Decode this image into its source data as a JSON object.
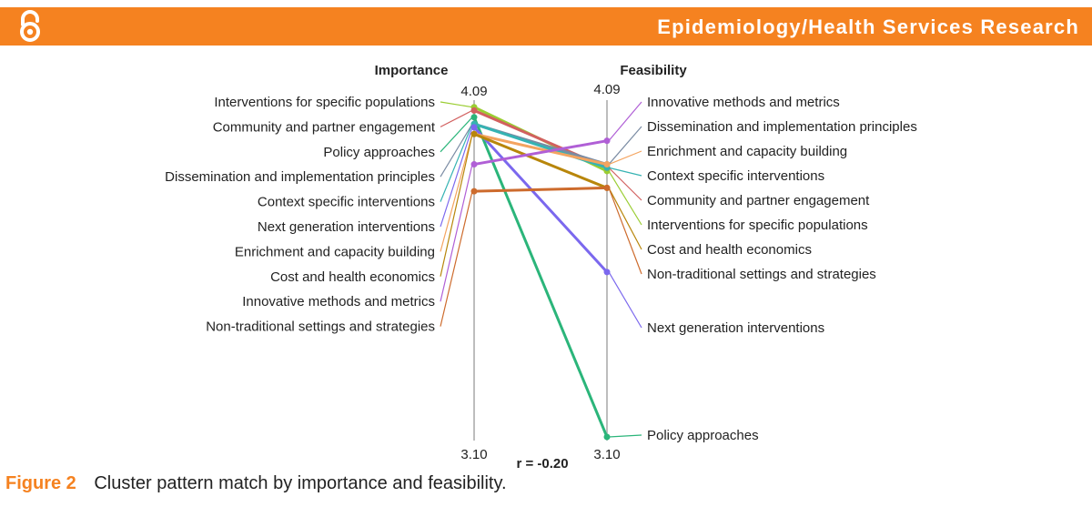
{
  "header": {
    "section_title": "Epidemiology/Health Services Research",
    "accent_color": "#f58220"
  },
  "caption": {
    "figure_label": "Figure 2",
    "text": "Cluster pattern match by importance and feasibility."
  },
  "chart_data": {
    "type": "slope",
    "left_axis": {
      "title": "Importance",
      "max_label": "4.09",
      "min_label": "3.10",
      "range": [
        3.1,
        4.09
      ]
    },
    "right_axis": {
      "title": "Feasibility",
      "max_label": "4.09",
      "min_label": "3.10",
      "range": [
        3.1,
        4.09
      ]
    },
    "correlation_label": "r = -0.20",
    "left_order": [
      "Interventions for specific populations",
      "Community and partner engagement",
      "Policy approaches",
      "Dissemination and implementation principles",
      "Context specific interventions",
      "Next generation interventions",
      "Enrichment and capacity building",
      "Cost and health economics",
      "Innovative methods and metrics",
      "Non-traditional settings and strategies"
    ],
    "right_order": [
      "Innovative methods and metrics",
      "Dissemination and implementation principles",
      "Enrichment and capacity building",
      "Context specific interventions",
      "Community and partner engagement",
      "Interventions for specific populations",
      "Cost and health economics",
      "Non-traditional settings and strategies",
      "Next generation interventions",
      "Policy approaches"
    ],
    "series": [
      {
        "name": "Interventions for specific populations",
        "importance": 4.08,
        "feasibility": 3.89,
        "color": "#9acd32"
      },
      {
        "name": "Community and partner engagement",
        "importance": 4.07,
        "feasibility": 3.9,
        "color": "#d2605f"
      },
      {
        "name": "Policy approaches",
        "importance": 4.05,
        "feasibility": 3.1,
        "color": "#2bb57a"
      },
      {
        "name": "Dissemination and implementation principles",
        "importance": 4.03,
        "feasibility": 3.91,
        "color": "#7a8ba3"
      },
      {
        "name": "Context specific interventions",
        "importance": 4.03,
        "feasibility": 3.9,
        "color": "#36b3b3"
      },
      {
        "name": "Next generation interventions",
        "importance": 4.02,
        "feasibility": 3.59,
        "color": "#7b68ee"
      },
      {
        "name": "Enrichment and capacity building",
        "importance": 4.0,
        "feasibility": 3.91,
        "color": "#f4a460"
      },
      {
        "name": "Cost and health economics",
        "importance": 4.0,
        "feasibility": 3.84,
        "color": "#b8860b"
      },
      {
        "name": "Innovative methods and metrics",
        "importance": 3.91,
        "feasibility": 3.98,
        "color": "#b05fd6"
      },
      {
        "name": "Non-traditional settings and strategies",
        "importance": 3.83,
        "feasibility": 3.84,
        "color": "#cd6b2d"
      }
    ]
  }
}
